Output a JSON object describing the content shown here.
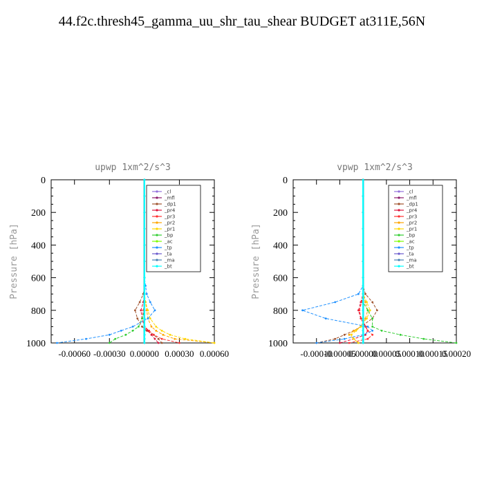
{
  "title": "44.f2c.thresh45_gamma_uu_shr_tau_shear  BUDGET at311E,56N",
  "series_styles": [
    {
      "name": "_cl",
      "color": "#9370db"
    },
    {
      "name": "_mfl",
      "color": "#8b1a6b"
    },
    {
      "name": "_dp1",
      "color": "#a0522d"
    },
    {
      "name": "_pr4",
      "color": "#dc143c"
    },
    {
      "name": "_pr3",
      "color": "#ff3030"
    },
    {
      "name": "_pr2",
      "color": "#ffa500"
    },
    {
      "name": "_pr1",
      "color": "#ffd700"
    },
    {
      "name": "_bp",
      "color": "#32cd32"
    },
    {
      "name": "_ac",
      "color": "#7cfc00"
    },
    {
      "name": "_tp",
      "color": "#1e90ff"
    },
    {
      "name": "_ta",
      "color": "#6a5acd"
    },
    {
      "name": "_ma",
      "color": "#4682b4"
    },
    {
      "name": "_bt",
      "color": "#00ffff"
    }
  ],
  "chart_data": [
    {
      "type": "line",
      "title": "upwp   1xm^2/s^3",
      "ylabel": "Pressure [hPa]",
      "xlim": [
        -0.0008,
        0.0006
      ],
      "ylim": [
        1000,
        0
      ],
      "xticks": [
        -0.0006,
        -0.0003,
        0.0,
        0.0003,
        0.0006
      ],
      "xtick_labels": [
        "-0.00060",
        "-0.00030",
        "0.00000",
        "0.00030",
        "0.00060"
      ],
      "yticks": [
        0,
        200,
        400,
        600,
        800,
        1000
      ],
      "y": [
        0,
        100,
        200,
        300,
        400,
        500,
        600,
        650,
        700,
        750,
        800,
        850,
        900,
        925,
        950,
        975,
        1000
      ],
      "legend": "top-right",
      "series": [
        {
          "name": "_cl",
          "values": [
            0,
            0,
            0,
            0,
            0,
            0,
            0,
            0,
            0,
            0,
            0,
            0,
            0,
            0,
            0,
            0,
            0
          ]
        },
        {
          "name": "_mfl",
          "values": [
            0,
            0,
            0,
            0,
            0,
            0,
            0,
            0,
            0,
            0,
            0,
            0,
            0,
            0,
            0,
            0,
            0
          ]
        },
        {
          "name": "_dp1",
          "values": [
            0,
            0,
            0,
            0,
            0,
            0,
            0,
            0,
            -1e-05,
            -4e-05,
            -8e-05,
            -6e-05,
            -2e-05,
            2e-05,
            8e-05,
            0.00012,
            0.00015
          ]
        },
        {
          "name": "_pr4",
          "values": [
            0,
            0,
            0,
            0,
            0,
            0,
            0,
            0,
            0,
            -1e-05,
            -3e-05,
            -2e-05,
            0,
            3e-05,
            6e-05,
            9e-05,
            0.00012
          ]
        },
        {
          "name": "_pr3",
          "values": [
            0,
            0,
            0,
            0,
            0,
            0,
            0,
            0,
            0,
            0,
            -1e-05,
            -2e-05,
            0,
            4e-05,
            8e-05,
            0.00015,
            0.0003
          ]
        },
        {
          "name": "_pr2",
          "values": [
            0,
            0,
            0,
            0,
            0,
            0,
            0,
            0,
            0,
            1e-05,
            2e-05,
            3e-05,
            6e-05,
            0.0001,
            0.00016,
            0.00026,
            0.0006
          ]
        },
        {
          "name": "_pr1",
          "values": [
            0,
            0,
            0,
            0,
            0,
            0,
            0,
            0,
            0,
            1e-05,
            3e-05,
            5e-05,
            0.0001,
            0.00015,
            0.00022,
            0.00035,
            0.0006
          ]
        },
        {
          "name": "_bp",
          "values": [
            0,
            0,
            0,
            0,
            0,
            0,
            0,
            0,
            0,
            0,
            0,
            -2e-05,
            -5e-05,
            -0.0001,
            -0.00016,
            -0.00025,
            -0.0003
          ]
        },
        {
          "name": "_ac",
          "values": [
            0,
            0,
            0,
            0,
            0,
            0,
            0,
            0,
            0,
            0,
            0,
            0,
            0,
            0,
            0,
            0,
            0
          ]
        },
        {
          "name": "_tp",
          "values": [
            0,
            0,
            0,
            0,
            0,
            0,
            0,
            1e-05,
            2e-05,
            5e-05,
            9e-05,
            3e-05,
            -0.0001,
            -0.0002,
            -0.0003,
            -0.0005,
            -0.00075
          ]
        },
        {
          "name": "_ta",
          "values": [
            0,
            0,
            0,
            0,
            0,
            0,
            0,
            0,
            0,
            0,
            0,
            0,
            0,
            0,
            0,
            0,
            0
          ]
        },
        {
          "name": "_ma",
          "values": [
            0,
            0,
            0,
            0,
            0,
            0,
            0,
            0,
            0,
            0,
            0,
            0,
            0,
            0,
            0,
            0,
            0
          ]
        },
        {
          "name": "_bt",
          "values": [
            0,
            0,
            0,
            0,
            0,
            0,
            0,
            0,
            0,
            0,
            0,
            0,
            0,
            0,
            0,
            0,
            0
          ]
        }
      ]
    },
    {
      "type": "line",
      "title": "vpwp   1xm^2/s^3",
      "ylabel": "Pressure [hPa]",
      "xlim": [
        -0.00015,
        0.0002
      ],
      "ylim": [
        1000,
        0
      ],
      "xticks": [
        -0.0001,
        -5e-05,
        0.0,
        5e-05,
        0.0001,
        0.00015,
        0.0002
      ],
      "xtick_labels": [
        "-0.00010",
        "-0.00005",
        "0.00000",
        "0.00005",
        "0.00010",
        "0.00015",
        "0.00020"
      ],
      "yticks": [
        0,
        200,
        400,
        600,
        800,
        1000
      ],
      "y": [
        0,
        100,
        200,
        300,
        400,
        500,
        600,
        650,
        700,
        750,
        800,
        850,
        900,
        925,
        950,
        975,
        1000
      ],
      "legend": "top-right",
      "series": [
        {
          "name": "_cl",
          "values": [
            0,
            0,
            0,
            0,
            0,
            0,
            0,
            0,
            0,
            0,
            0,
            0,
            0,
            0,
            0,
            0,
            0
          ]
        },
        {
          "name": "_mfl",
          "values": [
            0,
            0,
            0,
            0,
            0,
            0,
            0,
            0,
            0,
            0,
            0,
            0,
            0,
            0,
            0,
            0,
            0
          ]
        },
        {
          "name": "_dp1",
          "values": [
            0,
            0,
            0,
            0,
            0,
            0,
            0,
            0,
            5e-06,
            2e-05,
            3e-05,
            2e-05,
            -5e-06,
            -2e-05,
            -4e-05,
            -6e-05,
            -0.0001
          ]
        },
        {
          "name": "_pr4",
          "values": [
            0,
            0,
            0,
            0,
            0,
            0,
            0,
            0,
            0,
            -5e-06,
            -1e-05,
            -5e-06,
            5e-06,
            1e-05,
            5e-06,
            -2e-05,
            -5e-05
          ]
        },
        {
          "name": "_pr3",
          "values": [
            0,
            0,
            0,
            0,
            0,
            0,
            0,
            0,
            0,
            -3e-06,
            -8e-06,
            -4e-06,
            6e-06,
            1e-05,
            2e-05,
            1e-05,
            -3e-05
          ]
        },
        {
          "name": "_pr2",
          "values": [
            0,
            0,
            0,
            0,
            0,
            0,
            0,
            0,
            0,
            5e-06,
            1e-05,
            5e-06,
            -5e-06,
            -2e-05,
            -3e-05,
            -2e-05,
            -1e-05
          ]
        },
        {
          "name": "_pr1",
          "values": [
            0,
            0,
            0,
            0,
            0,
            0,
            0,
            0,
            0,
            8e-06,
            1.5e-05,
            8e-06,
            -5e-06,
            -1.5e-05,
            -2.5e-05,
            -2e-05,
            -1e-05
          ]
        },
        {
          "name": "_bp",
          "values": [
            0,
            0,
            0,
            0,
            0,
            0,
            0,
            0,
            0,
            0,
            1e-05,
            2e-05,
            2e-05,
            4e-05,
            8e-05,
            0.00013,
            0.0002
          ]
        },
        {
          "name": "_ac",
          "values": [
            0,
            0,
            0,
            0,
            0,
            0,
            0,
            0,
            0,
            0,
            0,
            0,
            0,
            0,
            0,
            0,
            0
          ]
        },
        {
          "name": "_tp",
          "values": [
            0,
            0,
            0,
            0,
            0,
            0,
            0,
            0,
            -1e-05,
            -6e-05,
            -0.00013,
            -8e-05,
            1e-05,
            2e-05,
            0,
            -4e-05,
            -0.0001
          ]
        },
        {
          "name": "_ta",
          "values": [
            0,
            0,
            0,
            0,
            0,
            0,
            0,
            0,
            0,
            0,
            0,
            0,
            0,
            0,
            0,
            0,
            0
          ]
        },
        {
          "name": "_ma",
          "values": [
            0,
            0,
            0,
            0,
            0,
            0,
            0,
            0,
            0,
            0,
            0,
            0,
            0,
            0,
            0,
            0,
            0
          ]
        },
        {
          "name": "_bt",
          "values": [
            0,
            0,
            0,
            0,
            0,
            0,
            0,
            0,
            0,
            0,
            0,
            0,
            0,
            0,
            0,
            0,
            0
          ]
        }
      ]
    }
  ]
}
